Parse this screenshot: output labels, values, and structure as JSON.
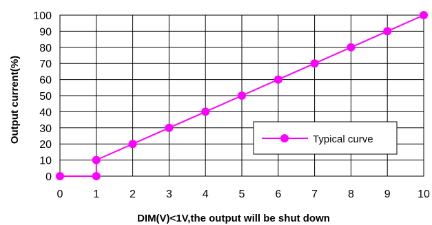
{
  "chart_data": {
    "type": "line",
    "xlabel": "DIM(V)<1V,the output will be shut down",
    "ylabel": "Output current(%)",
    "xlim": [
      0,
      10
    ],
    "ylim": [
      0,
      100
    ],
    "x_ticks": [
      0,
      1,
      2,
      3,
      4,
      5,
      6,
      7,
      8,
      9,
      10
    ],
    "y_ticks": [
      0,
      10,
      20,
      30,
      40,
      50,
      60,
      70,
      80,
      90,
      100
    ],
    "grid": true,
    "legend_position": "lower-right",
    "series": [
      {
        "name": "Typical curve",
        "color": "#ff00ff",
        "x": [
          0,
          1,
          1,
          2,
          3,
          4,
          5,
          6,
          7,
          8,
          9,
          10
        ],
        "y": [
          0,
          0,
          10,
          20,
          30,
          40,
          50,
          60,
          70,
          80,
          90,
          100
        ]
      }
    ]
  }
}
